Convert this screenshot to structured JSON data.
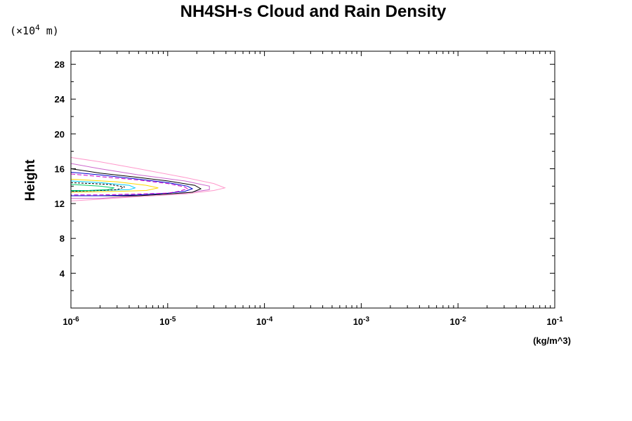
{
  "chart_data": {
    "type": "line",
    "title": "NH4SH-s Cloud and Rain Density",
    "ylabel": "Height",
    "y_unit_prefix": "(×10",
    "y_unit_exp": "4",
    "y_unit_suffix": " m)",
    "xunit": "(kg/m^3)",
    "x_scale": "log",
    "xlim": [
      1e-06,
      0.1
    ],
    "ylim": [
      0,
      29.5
    ],
    "x_ticks": [
      {
        "base": "10",
        "exp": "-6",
        "value": 1e-06
      },
      {
        "base": "10",
        "exp": "-5",
        "value": 1e-05
      },
      {
        "base": "10",
        "exp": "-4",
        "value": 0.0001
      },
      {
        "base": "10",
        "exp": "-3",
        "value": 0.001
      },
      {
        "base": "10",
        "exp": "-2",
        "value": 0.01
      },
      {
        "base": "10",
        "exp": "-1",
        "value": 0.1
      }
    ],
    "y_ticks": [
      {
        "label": "4",
        "value": 4
      },
      {
        "label": "8",
        "value": 8
      },
      {
        "label": "12",
        "value": 12
      },
      {
        "label": "16",
        "value": 16
      },
      {
        "label": "20",
        "value": 20
      },
      {
        "label": "24",
        "value": 24
      },
      {
        "label": "28",
        "value": 28
      }
    ],
    "grid": false,
    "series": [
      {
        "color": "#ff99cc",
        "dash": "",
        "points": [
          [
            1e-06,
            17.3
          ],
          [
            2e-06,
            16.8
          ],
          [
            5e-06,
            16.0
          ],
          [
            1.5e-05,
            15.0
          ],
          [
            3e-05,
            14.3
          ],
          [
            3.9e-05,
            13.8
          ],
          [
            3e-05,
            13.5
          ],
          [
            1.5e-05,
            13.1
          ],
          [
            5e-06,
            12.8
          ],
          [
            2e-06,
            12.5
          ],
          [
            1e-06,
            12.3
          ]
        ]
      },
      {
        "color": "#cc66cc",
        "dash": "",
        "points": [
          [
            1e-06,
            16.6
          ],
          [
            2e-06,
            16.0
          ],
          [
            5e-06,
            15.3
          ],
          [
            1.5e-05,
            14.6
          ],
          [
            2.7e-05,
            14.0
          ],
          [
            2.7e-05,
            13.6
          ],
          [
            1.5e-05,
            13.2
          ],
          [
            5e-06,
            12.9
          ],
          [
            2e-06,
            12.6
          ],
          [
            1e-06,
            12.6
          ]
        ]
      },
      {
        "color": "#000000",
        "dash": "",
        "points": [
          [
            1e-06,
            16.0
          ],
          [
            2e-06,
            15.5
          ],
          [
            5e-06,
            15.0
          ],
          [
            1e-05,
            14.6
          ],
          [
            1.9e-05,
            14.1
          ],
          [
            2.2e-05,
            13.7
          ],
          [
            1.8e-05,
            13.3
          ],
          [
            1e-05,
            13.1
          ],
          [
            5e-06,
            12.9
          ],
          [
            2e-06,
            12.9
          ],
          [
            1e-06,
            12.9
          ]
        ]
      },
      {
        "color": "#0000cc",
        "dash": "",
        "points": [
          [
            1e-06,
            15.6
          ],
          [
            2e-06,
            15.3
          ],
          [
            5e-06,
            14.8
          ],
          [
            1e-05,
            14.4
          ],
          [
            1.6e-05,
            14.0
          ],
          [
            1.8e-05,
            13.7
          ],
          [
            1.5e-05,
            13.4
          ],
          [
            1e-05,
            13.2
          ],
          [
            5e-06,
            13.0
          ],
          [
            2e-06,
            12.9
          ],
          [
            1e-06,
            12.9
          ]
        ]
      },
      {
        "color": "#cc00cc",
        "dash": "6,3",
        "points": [
          [
            1e-06,
            15.4
          ],
          [
            2e-06,
            15.1
          ],
          [
            5e-06,
            14.7
          ],
          [
            1e-05,
            14.3
          ],
          [
            1.5e-05,
            13.9
          ],
          [
            1.6e-05,
            13.7
          ],
          [
            1.3e-05,
            13.4
          ],
          [
            1e-05,
            13.2
          ],
          [
            5e-06,
            13.1
          ],
          [
            2e-06,
            13.0
          ],
          [
            1e-06,
            13.0
          ]
        ]
      },
      {
        "color": "#ffd700",
        "dash": "",
        "points": [
          [
            1e-06,
            14.8
          ],
          [
            3e-06,
            14.5
          ],
          [
            6e-06,
            14.1
          ],
          [
            8e-06,
            13.8
          ],
          [
            6e-06,
            13.5
          ],
          [
            3e-06,
            13.4
          ],
          [
            1e-06,
            13.3
          ]
        ]
      },
      {
        "color": "#00ccff",
        "dash": "",
        "points": [
          [
            1e-06,
            14.6
          ],
          [
            2e-06,
            14.4
          ],
          [
            4e-06,
            14.1
          ],
          [
            4.6e-06,
            13.8
          ],
          [
            4e-06,
            13.6
          ],
          [
            2e-06,
            13.5
          ],
          [
            1e-06,
            13.4
          ]
        ]
      },
      {
        "color": "#000000",
        "dash": "3,2",
        "points": [
          [
            1e-06,
            14.4
          ],
          [
            2.5e-06,
            14.2
          ],
          [
            3.6e-06,
            13.9
          ],
          [
            3e-06,
            13.6
          ],
          [
            2e-06,
            13.5
          ],
          [
            1e-06,
            13.4
          ]
        ]
      },
      {
        "color": "#00cc66",
        "dash": "",
        "points": [
          [
            1e-06,
            14.2
          ],
          [
            2e-06,
            14.0
          ],
          [
            2.8e-06,
            13.8
          ],
          [
            2.4e-06,
            13.6
          ],
          [
            1.5e-06,
            13.5
          ],
          [
            1e-06,
            13.5
          ]
        ]
      }
    ]
  }
}
